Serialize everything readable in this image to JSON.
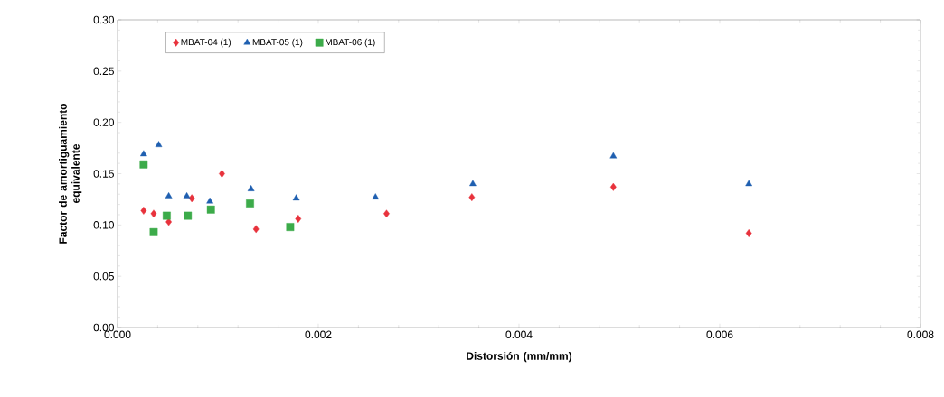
{
  "chart_data": {
    "type": "scatter",
    "xlabel": "Distorsión (mm/mm)",
    "ylabel": "Factor de amortiguamiento equivalente",
    "xlim": [
      0,
      0.008
    ],
    "xticks": [
      {
        "value": 0,
        "label": "0.000"
      },
      {
        "value": 0.002,
        "label": "0.002"
      },
      {
        "value": 0.004,
        "label": "0.004"
      },
      {
        "value": 0.006,
        "label": "0.006"
      },
      {
        "value": 0.008,
        "label": "0.008"
      }
    ],
    "ylim": [
      0,
      0.3
    ],
    "yticks": [
      {
        "value": 0,
        "label": "0.00"
      },
      {
        "value": 0.05,
        "label": "0.05"
      },
      {
        "value": 0.1,
        "label": "0.10"
      },
      {
        "value": 0.15,
        "label": "0.15"
      },
      {
        "value": 0.2,
        "label": "0.20"
      },
      {
        "value": 0.25,
        "label": "0.25"
      },
      {
        "value": 0.3,
        "label": "0.30"
      }
    ],
    "grid": false,
    "legend": "top left",
    "series": [
      {
        "name": "MBAT-04 (1)",
        "color": "#e8323c",
        "marker": "diamond",
        "x": [
          0.00026,
          0.00036,
          0.00051,
          0.00074,
          0.00104,
          0.00138,
          0.0018,
          0.00268,
          0.00353,
          0.00494,
          0.00629
        ],
        "values": [
          0.114,
          0.111,
          0.103,
          0.126,
          0.15,
          0.096,
          0.106,
          0.111,
          0.127,
          0.137,
          0.092
        ]
      },
      {
        "name": "MBAT-05 (1)",
        "color": "#1f5fb0",
        "marker": "triangle",
        "x": [
          0.00026,
          0.00041,
          0.00051,
          0.00069,
          0.00092,
          0.00133,
          0.00178,
          0.00257,
          0.00354,
          0.00494,
          0.00629
        ],
        "values": [
          0.169,
          0.178,
          0.128,
          0.128,
          0.123,
          0.135,
          0.126,
          0.127,
          0.14,
          0.167,
          0.14
        ]
      },
      {
        "name": "MBAT-06 (1)",
        "color": "#3cab4a",
        "marker": "square",
        "x": [
          0.00026,
          0.00036,
          0.00049,
          0.0007,
          0.00093,
          0.00132,
          0.00172
        ],
        "values": [
          0.159,
          0.093,
          0.109,
          0.109,
          0.115,
          0.121,
          0.098
        ]
      }
    ]
  }
}
